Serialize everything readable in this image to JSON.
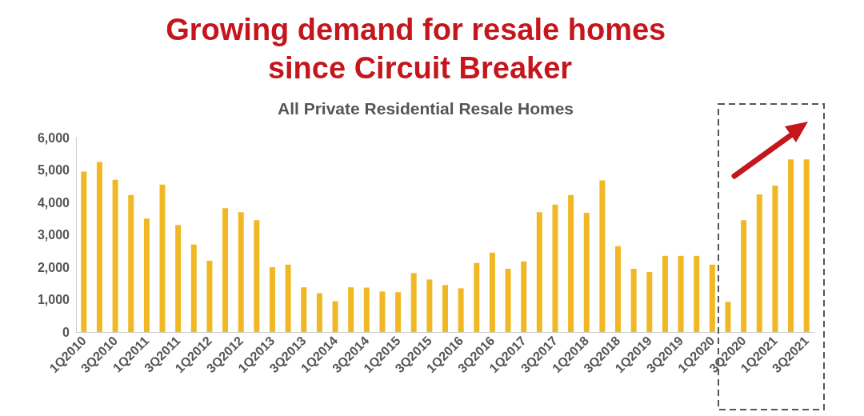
{
  "chart_data": {
    "type": "bar",
    "title": "Growing demand for resale homes since Circuit Breaker",
    "subtitle": "All Private Residential Resale Homes",
    "categories": [
      "1Q2010",
      null,
      "3Q2010",
      null,
      "1Q2011",
      null,
      "3Q2011",
      null,
      "1Q2012",
      null,
      "3Q2012",
      null,
      "1Q2013",
      null,
      "3Q2013",
      null,
      "1Q2014",
      null,
      "3Q2014",
      null,
      "1Q2015",
      null,
      "3Q2015",
      null,
      "1Q2016",
      null,
      "3Q2016",
      null,
      "1Q2017",
      null,
      "3Q2017",
      null,
      "1Q2018",
      null,
      "3Q2018",
      null,
      "1Q2019",
      null,
      "3Q2019",
      null,
      "1Q2020",
      null,
      "3Q2020",
      null,
      "1Q2021",
      null,
      "3Q2021"
    ],
    "values": [
      4950,
      5250,
      4700,
      4230,
      3500,
      4550,
      3300,
      2700,
      2200,
      3820,
      3700,
      3450,
      2000,
      2080,
      1380,
      1200,
      950,
      1380,
      1370,
      1250,
      1230,
      1820,
      1620,
      1450,
      1350,
      2130,
      2450,
      1950,
      2180,
      3700,
      3930,
      4230,
      3680,
      4680,
      2650,
      1950,
      1850,
      2350,
      2350,
      2350,
      2080,
      930,
      3450,
      4250,
      4520,
      5330,
      5330
    ],
    "color": "#f0b824",
    "ylim": [
      0,
      6000
    ],
    "yticks": [
      {
        "value": 0,
        "label": "0"
      },
      {
        "value": 1000,
        "label": "1,000"
      },
      {
        "value": 2000,
        "label": "2,000"
      },
      {
        "value": 3000,
        "label": "3,000"
      },
      {
        "value": 4000,
        "label": "4,000"
      },
      {
        "value": 5000,
        "label": "5,000"
      },
      {
        "value": 6000,
        "label": "6,000"
      }
    ],
    "grid": false
  }
}
